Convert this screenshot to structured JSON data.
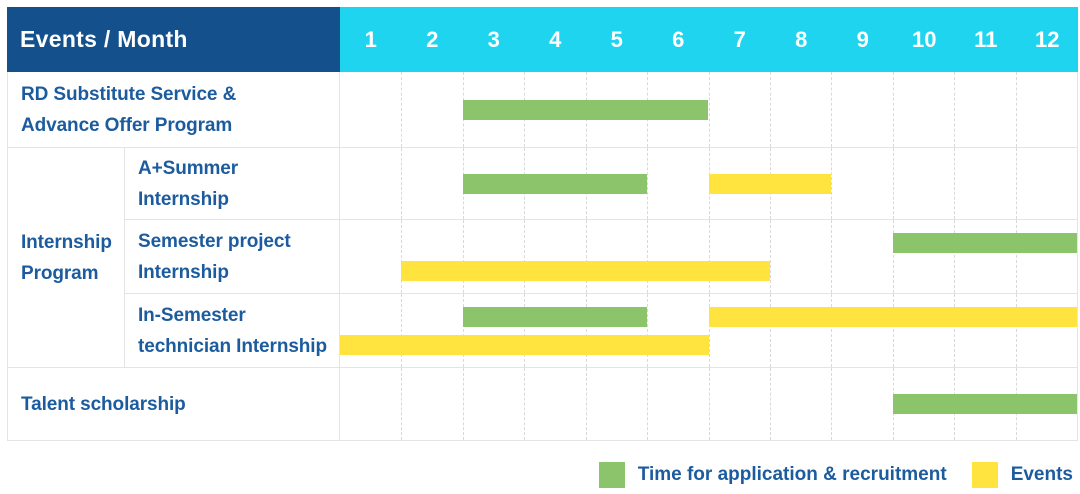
{
  "header": {
    "label": "Events / Month",
    "months": [
      "1",
      "2",
      "3",
      "4",
      "5",
      "6",
      "7",
      "8",
      "9",
      "10",
      "11",
      "12"
    ]
  },
  "group": {
    "label": "Internship\nProgram"
  },
  "rows": [
    {
      "label": "RD Substitute Service &\nAdvance Offer Program",
      "group": null,
      "bars": [
        {
          "type": "application",
          "start_month": 3,
          "end_month": 6,
          "line": "center"
        }
      ]
    },
    {
      "label": "A+Summer\nInternship",
      "group": "Internship Program",
      "bars": [
        {
          "type": "application",
          "start_month": 3,
          "end_month": 5,
          "line": "center"
        },
        {
          "type": "events",
          "start_month": 7,
          "end_month": 8,
          "line": "center"
        }
      ]
    },
    {
      "label": "Semester project\nInternship",
      "group": "Internship Program",
      "bars": [
        {
          "type": "application",
          "start_month": 10,
          "end_month": 12,
          "line": "top"
        },
        {
          "type": "events",
          "start_month": 2,
          "end_month": 7,
          "line": "bottom"
        }
      ]
    },
    {
      "label": "In-Semester\ntechnician Internship",
      "group": "Internship Program",
      "bars": [
        {
          "type": "application",
          "start_month": 3,
          "end_month": 5,
          "line": "top"
        },
        {
          "type": "events",
          "start_month": 7,
          "end_month": 12,
          "line": "top"
        },
        {
          "type": "events",
          "start_month": 1,
          "end_month": 6,
          "line": "bottom"
        }
      ]
    },
    {
      "label": "Talent scholarship",
      "group": null,
      "bars": [
        {
          "type": "application",
          "start_month": 10,
          "end_month": 12,
          "line": "center"
        }
      ]
    }
  ],
  "legend": [
    {
      "type": "application",
      "label": "Time for application & recruitment",
      "color": "#8BC46A"
    },
    {
      "type": "events",
      "label": "Events",
      "color": "#FFE33E"
    }
  ],
  "colors": {
    "header_bg": "#14518C",
    "months_bg": "#1FD4EF",
    "application_bar": "#8BC46A",
    "events_bar": "#FFE33E",
    "label_text": "#1C5C9E"
  },
  "chart_data": {
    "type": "table",
    "title": "Events / Month",
    "x_axis": {
      "label": "Month",
      "ticks": [
        1,
        2,
        3,
        4,
        5,
        6,
        7,
        8,
        9,
        10,
        11,
        12
      ],
      "range": [
        1,
        12
      ]
    },
    "grid": true,
    "legend_position": "bottom-right",
    "legend": [
      {
        "name": "Time for application & recruitment",
        "color": "#8BC46A"
      },
      {
        "name": "Events",
        "color": "#FFE33E"
      }
    ],
    "rows": [
      {
        "group": null,
        "label": "RD Substitute Service & Advance Offer Program",
        "bars": [
          {
            "series": "Time for application & recruitment",
            "start_month": 3,
            "end_month": 6
          }
        ]
      },
      {
        "group": "Internship Program",
        "label": "A+Summer Internship",
        "bars": [
          {
            "series": "Time for application & recruitment",
            "start_month": 3,
            "end_month": 5
          },
          {
            "series": "Events",
            "start_month": 7,
            "end_month": 8
          }
        ]
      },
      {
        "group": "Internship Program",
        "label": "Semester project Internship",
        "bars": [
          {
            "series": "Time for application & recruitment",
            "start_month": 10,
            "end_month": 12
          },
          {
            "series": "Events",
            "start_month": 2,
            "end_month": 7
          }
        ]
      },
      {
        "group": "Internship Program",
        "label": "In-Semester technician Internship",
        "bars": [
          {
            "series": "Time for application & recruitment",
            "start_month": 3,
            "end_month": 5
          },
          {
            "series": "Events",
            "start_month": 7,
            "end_month": 12
          },
          {
            "series": "Events",
            "start_month": 1,
            "end_month": 6
          }
        ]
      },
      {
        "group": null,
        "label": "Talent scholarship",
        "bars": [
          {
            "series": "Time for application & recruitment",
            "start_month": 10,
            "end_month": 12
          }
        ]
      }
    ]
  }
}
